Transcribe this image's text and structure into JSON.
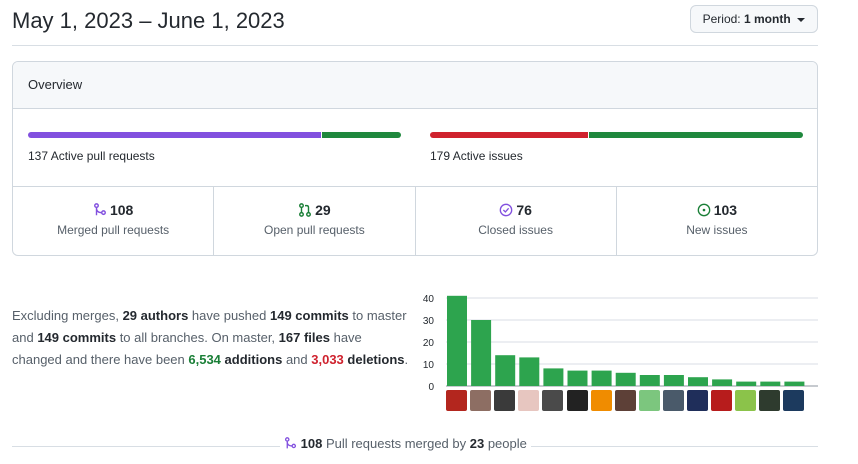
{
  "header": {
    "date_range": "May 1, 2023 – June 1, 2023",
    "period_label": "Period:",
    "period_value": "1 month"
  },
  "overview": {
    "title": "Overview",
    "pull_requests_bar": {
      "merged": 108,
      "open": 29,
      "colors": [
        "#8250df",
        "#1f883d"
      ]
    },
    "issues_bar": {
      "closed": 76,
      "new": 103,
      "colors": [
        "#cf222e",
        "#1f883d"
      ]
    },
    "active_pr_count": "137",
    "active_pr_label": "Active pull requests",
    "active_issues_count": "179",
    "active_issues_label": "Active issues",
    "stats": [
      {
        "count": "108",
        "label": "Merged pull requests",
        "icon": "git-merge-icon",
        "color": "#8250df"
      },
      {
        "count": "29",
        "label": "Open pull requests",
        "icon": "git-pull-request-icon",
        "color": "#1a7f37"
      },
      {
        "count": "76",
        "label": "Closed issues",
        "icon": "issue-closed-icon",
        "color": "#8250df"
      },
      {
        "count": "103",
        "label": "New issues",
        "icon": "issue-opened-icon",
        "color": "#1a7f37"
      }
    ]
  },
  "summary": {
    "t1": "Excluding merges, ",
    "authors": "29 authors",
    "t2": " have pushed ",
    "commits1": "149 commits",
    "t3": " to master and ",
    "commits2": "149 commits",
    "t4": " to all branches. On master, ",
    "files": "167 files",
    "t5": " have changed and there have been ",
    "additions_num": "6,534",
    "additions_word": "additions",
    "t6": " and ",
    "deletions_num": "3,033",
    "deletions_word": "deletions",
    "t7": "."
  },
  "chart_data": {
    "type": "bar",
    "title": "",
    "xlabel": "",
    "ylabel": "",
    "ylim": [
      0,
      40
    ],
    "yticks": [
      0,
      10,
      20,
      30,
      40
    ],
    "values": [
      41,
      30,
      14,
      13,
      8,
      7,
      7,
      6,
      5,
      5,
      4,
      3,
      2,
      2,
      2
    ],
    "bar_color": "#2da44e",
    "grid": true,
    "avatar_colors": [
      "#b3261e",
      "#8d6e63",
      "#3a3a3a",
      "#e7c6c0",
      "#4a4a4a",
      "#222222",
      "#f08c00",
      "#5d4037",
      "#7cc67e",
      "#4a5a6a",
      "#1f2e5a",
      "#b71c1c",
      "#8bc34a",
      "#2e3b2e",
      "#1c3a5e"
    ]
  },
  "footer": {
    "count": "108",
    "t1": " Pull requests merged by ",
    "people": "23",
    "t2": " people"
  }
}
